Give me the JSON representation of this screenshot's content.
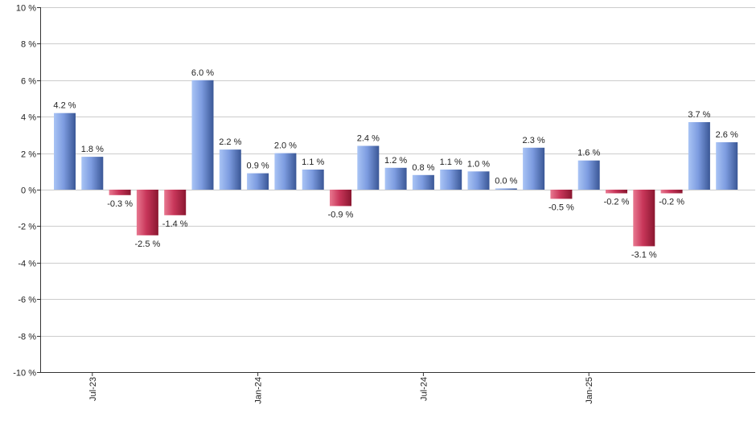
{
  "chart_data": {
    "type": "bar",
    "title": "",
    "xlabel": "",
    "ylabel": "",
    "ylim": [
      -10,
      10
    ],
    "yticks": [
      10,
      8,
      6,
      4,
      2,
      0,
      -2,
      -4,
      -6,
      -8,
      -10
    ],
    "ytick_labels": [
      "10 %",
      "8 %",
      "6 %",
      "4 %",
      "2 %",
      "0 %",
      "-2 %",
      "-4 %",
      "-6 %",
      "-8 %",
      "-10 %"
    ],
    "value_suffix": " %",
    "values": [
      4.2,
      1.8,
      -0.3,
      -2.5,
      -1.4,
      6.0,
      2.2,
      0.9,
      2.0,
      1.1,
      -0.9,
      2.4,
      1.2,
      0.8,
      1.1,
      1.0,
      0.0,
      2.3,
      -0.5,
      1.6,
      -0.2,
      -3.1,
      -0.2,
      3.7,
      2.6
    ],
    "value_labels": [
      "4.2 %",
      "1.8 %",
      "-0.3 %",
      "-2.5 %",
      "-1.4 %",
      "6.0 %",
      "2.2 %",
      "0.9 %",
      "2.0 %",
      "1.1 %",
      "-0.9 %",
      "2.4 %",
      "1.2 %",
      "0.8 %",
      "1.1 %",
      "1.0 %",
      "0.0 %",
      "2.3 %",
      "-0.5 %",
      "1.6 %",
      "-0.2 %",
      "-3.1 %",
      "-0.2 %",
      "3.7 %",
      "2.6 %"
    ],
    "xtick_labels": [
      {
        "index": 1,
        "label": "Jul-23"
      },
      {
        "index": 7,
        "label": "Jan-24"
      },
      {
        "index": 13,
        "label": "Jul-24"
      },
      {
        "index": 19,
        "label": "Jan-25"
      }
    ],
    "colors": {
      "positive_light": "#a9c4f5",
      "positive_mid": "#7d9ce0",
      "positive_dark": "#3a5796",
      "negative_light": "#e87890",
      "negative_mid": "#c8365a",
      "negative_dark": "#8a1730"
    },
    "grid": true,
    "legend": "none"
  }
}
